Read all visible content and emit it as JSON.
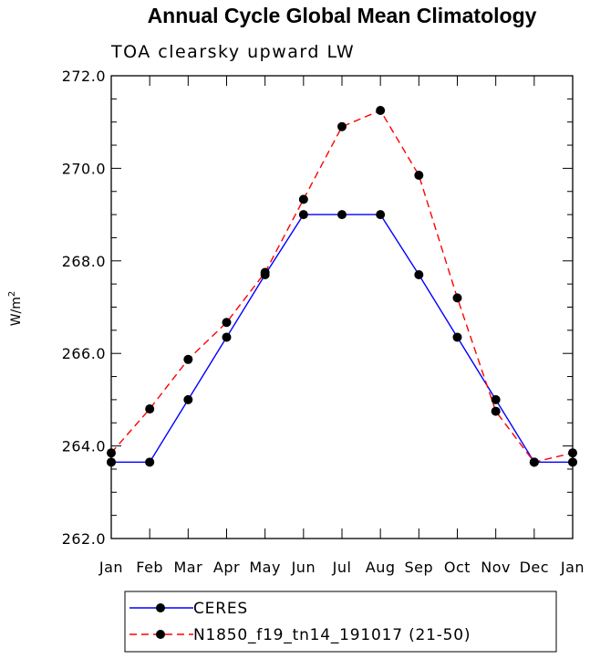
{
  "chart_data": {
    "type": "line",
    "title": "Annual Cycle Global Mean Climatology",
    "subtitle": "TOA clearsky upward LW",
    "ylabel": "W/m",
    "ylabel_sup": "2",
    "xlabel": "",
    "categories": [
      "Jan",
      "Feb",
      "Mar",
      "Apr",
      "May",
      "Jun",
      "Jul",
      "Aug",
      "Sep",
      "Oct",
      "Nov",
      "Dec",
      "Jan"
    ],
    "ylim": [
      262.0,
      272.0
    ],
    "yticks": [
      262.0,
      264.0,
      266.0,
      268.0,
      270.0,
      272.0
    ],
    "ytick_labels": [
      "262.0",
      "264.0",
      "266.0",
      "268.0",
      "270.0",
      "272.0"
    ],
    "grid": false,
    "legend_placement": "bottom",
    "series": [
      {
        "name": "CERES",
        "color": "#0000ff",
        "dash": "solid",
        "values": [
          263.65,
          263.65,
          265.0,
          266.35,
          267.7,
          269.0,
          269.0,
          269.0,
          267.7,
          266.35,
          265.0,
          263.65,
          263.65
        ]
      },
      {
        "name": "N1850_f19_tn14_191017 (21-50)",
        "color": "#ff0000",
        "dash": "dashed",
        "values": [
          263.85,
          264.8,
          265.87,
          266.67,
          267.75,
          269.33,
          270.9,
          271.25,
          269.85,
          267.2,
          264.75,
          263.65,
          263.85
        ]
      }
    ]
  }
}
